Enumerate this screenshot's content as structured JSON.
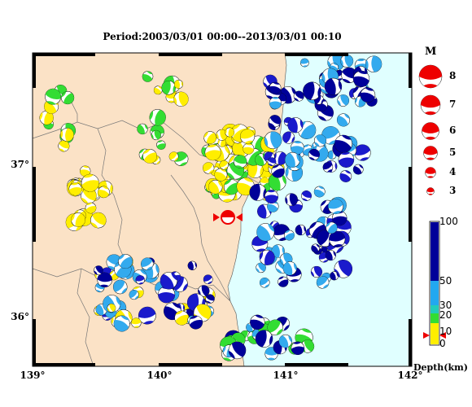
{
  "title": "Period:2003/03/01 00:00--2013/03/01 00:10",
  "x_ticks": [
    {
      "label": "139°",
      "value": 139
    },
    {
      "label": "140°",
      "value": 140
    },
    {
      "label": "141°",
      "value": 141
    },
    {
      "label": "142°",
      "value": 142
    }
  ],
  "y_ticks": [
    {
      "label": "37°",
      "value": 37
    },
    {
      "label": "36°",
      "value": 36
    }
  ],
  "magnitude_legend": {
    "title": "M",
    "levels": [
      {
        "label": "8",
        "value": 8
      },
      {
        "label": "7",
        "value": 7
      },
      {
        "label": "6",
        "value": 6
      },
      {
        "label": "5",
        "value": 5
      },
      {
        "label": "4",
        "value": 4
      },
      {
        "label": "3",
        "value": 3
      }
    ]
  },
  "depth_colorbar": {
    "title": "Depth(km)",
    "labels": [
      "100",
      "50",
      "30",
      "20",
      "10",
      "0"
    ],
    "colors": [
      "#000099",
      "#1a1acc",
      "#33aaee",
      "#22ccbb",
      "#33dd33",
      "#ffee00"
    ]
  },
  "colors": {
    "land": "#fbe2c6",
    "sea": "#e0ffff",
    "mechanism_red": "#ee0000"
  }
}
